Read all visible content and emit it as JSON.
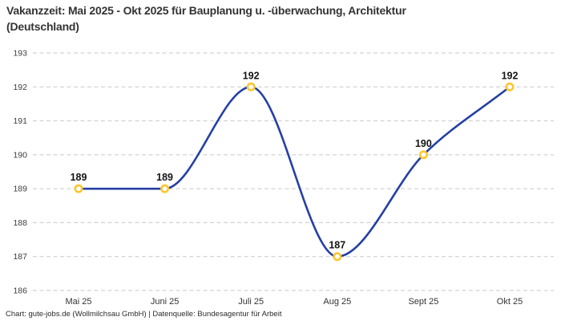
{
  "title": {
    "line1": "Vakanzzeit: Mai 2025 - Okt 2025 für Bauplanung u. -überwachung, Architektur",
    "line2": "(Deutschland)"
  },
  "footer": {
    "credit": "Chart: gute-jobs.de (Wollmilchsau GmbH) | Datenquelle: Bundesagentur für Arbeit"
  },
  "chart_data": {
    "type": "line",
    "title": "Vakanzzeit: Mai 2025 - Okt 2025 für Bauplanung u. -überwachung, Architektur (Deutschland)",
    "categories": [
      "Mai 25",
      "Juni 25",
      "Juli 25",
      "Aug 25",
      "Sept 25",
      "Okt 25"
    ],
    "values": [
      189,
      189,
      192,
      187,
      190,
      192
    ],
    "data_labels": [
      "189",
      "189",
      "192",
      "187",
      "190",
      "192"
    ],
    "yticks": [
      193,
      192,
      191,
      190,
      189,
      188,
      187,
      186
    ],
    "ylim": [
      186,
      193
    ],
    "xlabel": "",
    "ylabel": "",
    "grid": "horizontal-dashed",
    "legend_position": "none",
    "curve": "smooth-monotone",
    "colors": {
      "line": "#2540a4",
      "marker_ring": "#fdc62f",
      "marker_fill": "#ffffff",
      "grid": "#c9c9c9",
      "label": "#141414"
    }
  }
}
